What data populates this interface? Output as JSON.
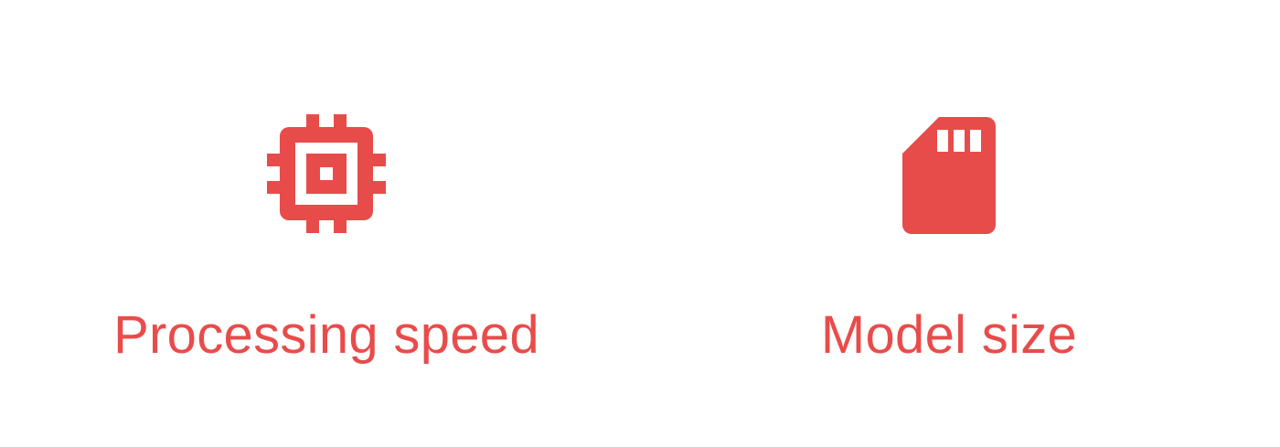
{
  "accent_color": "#e84c4a",
  "features": [
    {
      "icon": "cpu-chip-icon",
      "label": "Processing speed"
    },
    {
      "icon": "sd-card-icon",
      "label": "Model size"
    }
  ]
}
